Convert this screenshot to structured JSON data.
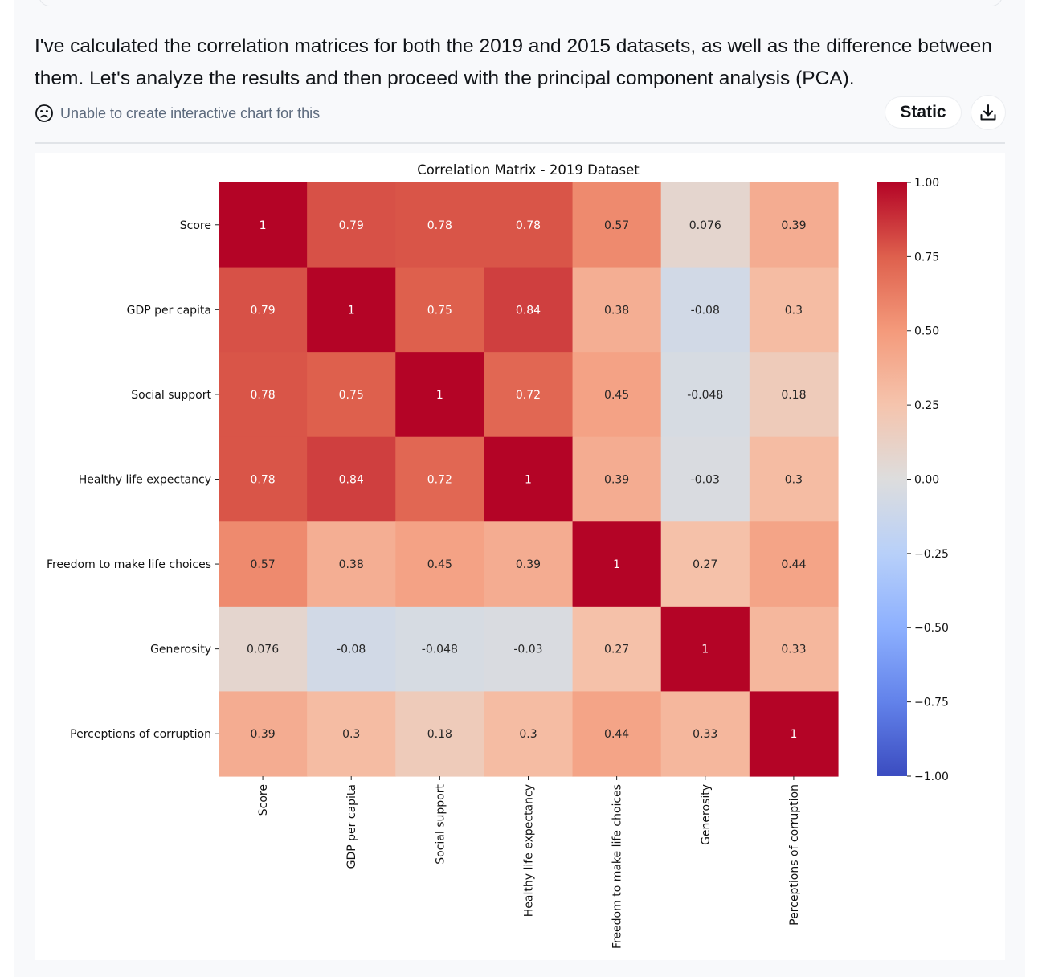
{
  "message": {
    "text": "I've calculated the correlation matrices for both the 2019 and 2015 datasets, as well as the difference between them. Let's analyze the results and then proceed with the principal component analysis (PCA)."
  },
  "status": {
    "icon": "sad-face-icon",
    "text": "Unable to create interactive chart for this"
  },
  "controls": {
    "static_label": "Static",
    "download_icon": "download-icon"
  },
  "chart_data": {
    "type": "heatmap",
    "title": "Correlation Matrix - 2019 Dataset",
    "colormap": "coolwarm",
    "vmin": -1.0,
    "vmax": 1.0,
    "row_labels": [
      "Score",
      "GDP per capita",
      "Social support",
      "Healthy life expectancy",
      "Freedom to make life choices",
      "Generosity",
      "Perceptions of corruption"
    ],
    "col_labels": [
      "Score",
      "GDP per capita",
      "Social support",
      "Healthy life expectancy",
      "Freedom to make life choices",
      "Generosity",
      "Perceptions of corruption"
    ],
    "values": [
      [
        1,
        0.79,
        0.78,
        0.78,
        0.57,
        0.076,
        0.39
      ],
      [
        0.79,
        1,
        0.75,
        0.84,
        0.38,
        -0.08,
        0.3
      ],
      [
        0.78,
        0.75,
        1,
        0.72,
        0.45,
        -0.048,
        0.18
      ],
      [
        0.78,
        0.84,
        0.72,
        1,
        0.39,
        -0.03,
        0.3
      ],
      [
        0.57,
        0.38,
        0.45,
        0.39,
        1,
        0.27,
        0.44
      ],
      [
        0.076,
        -0.08,
        -0.048,
        -0.03,
        0.27,
        1,
        0.33
      ],
      [
        0.39,
        0.3,
        0.18,
        0.3,
        0.44,
        0.33,
        1
      ]
    ],
    "colorbar_ticks": [
      1.0,
      0.75,
      0.5,
      0.25,
      0.0,
      -0.25,
      -0.5,
      -0.75,
      -1.0
    ],
    "colorbar_tick_labels": [
      "1.00",
      "0.75",
      "0.50",
      "0.25",
      "0.00",
      "−0.25",
      "−0.50",
      "−0.75",
      "−1.00"
    ]
  }
}
